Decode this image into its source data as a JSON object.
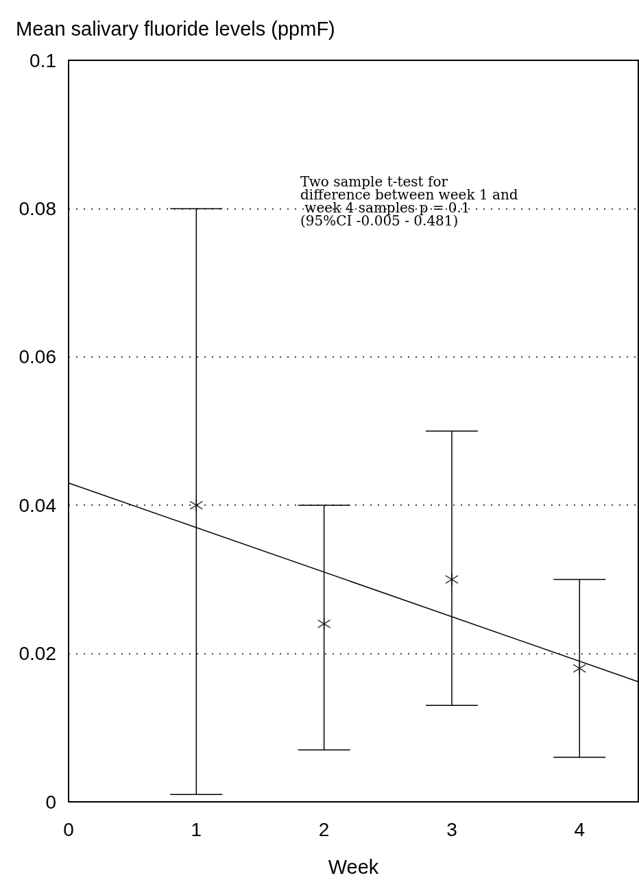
{
  "chart_data": {
    "type": "scatter",
    "title": "Mean salivary fluoride levels (ppmF)",
    "xlabel": "Week",
    "series": [
      {
        "color": "#000000",
        "x": [
          1,
          2,
          3,
          4
        ],
        "values": [
          0.04,
          0.024,
          0.03,
          0.018
        ],
        "errors": [
          [
            0.001,
            0.08
          ],
          [
            0.007,
            0.04
          ],
          [
            0.013,
            0.05
          ],
          [
            0.006,
            0.03
          ]
        ]
      },
      {
        "type": "line",
        "color": "#000000",
        "x": [
          0,
          4.46
        ],
        "values": [
          0.043,
          0.0162
        ],
        "marker": "none"
      }
    ],
    "marker": "cross",
    "xlim": [
      0,
      4.46
    ],
    "xticks": [
      0,
      1,
      2,
      3,
      4
    ],
    "ylim": [
      0,
      0.1
    ],
    "yticks": [
      0,
      0.02,
      0.04,
      0.06,
      0.08,
      0.1
    ],
    "grid": "y",
    "line_style": "solid",
    "annotations": [
      "Two sample t-test for difference between week 1 and week 4 samples p = 0.1 (95%CI -0.005 - 0.481)"
    ]
  }
}
